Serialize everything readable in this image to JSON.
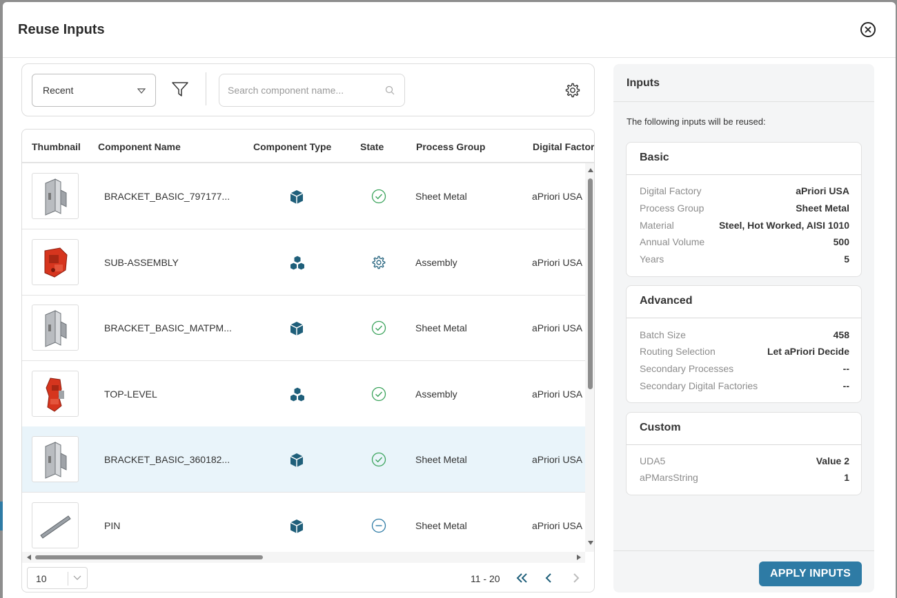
{
  "modal": {
    "title": "Reuse Inputs"
  },
  "toolbar": {
    "view_select": "Recent",
    "search_placeholder": "Search component name..."
  },
  "table": {
    "columns": [
      "Thumbnail",
      "Component Name",
      "Component Type",
      "State",
      "Process Group",
      "Digital Factory"
    ],
    "rows": [
      {
        "name": "BRACKET_BASIC_797177...",
        "type_icon": "part-cube-icon",
        "state_icon": "complete-check-icon",
        "process_group": "Sheet Metal",
        "digital_factory": "aPriori USA",
        "thumbnail": "bracket"
      },
      {
        "name": "SUB-ASSEMBLY",
        "type_icon": "assembly-cubes-icon",
        "state_icon": "processing-gear-icon",
        "process_group": "Assembly",
        "digital_factory": "aPriori USA",
        "thumbnail": "red-assembly"
      },
      {
        "name": "BRACKET_BASIC_MATPM...",
        "type_icon": "part-cube-icon",
        "state_icon": "complete-check-icon",
        "process_group": "Sheet Metal",
        "digital_factory": "aPriori USA",
        "thumbnail": "bracket"
      },
      {
        "name": "TOP-LEVEL",
        "type_icon": "assembly-cubes-icon",
        "state_icon": "complete-check-icon",
        "process_group": "Assembly",
        "digital_factory": "aPriori USA",
        "thumbnail": "red-assembly-tall"
      },
      {
        "name": "BRACKET_BASIC_360182...",
        "type_icon": "part-cube-icon",
        "state_icon": "complete-check-icon",
        "process_group": "Sheet Metal",
        "digital_factory": "aPriori USA",
        "thumbnail": "bracket",
        "selected": true
      },
      {
        "name": "PIN",
        "type_icon": "part-cube-icon",
        "state_icon": "not-costed-minus-icon",
        "process_group": "Sheet Metal",
        "digital_factory": "aPriori USA",
        "thumbnail": "pin"
      }
    ]
  },
  "pagination": {
    "page_size": "10",
    "range": "11 - 20"
  },
  "inputs": {
    "title": "Inputs",
    "description": "The following inputs will be reused:",
    "basic": {
      "title": "Basic",
      "items": [
        {
          "label": "Digital Factory",
          "value": "aPriori USA"
        },
        {
          "label": "Process Group",
          "value": "Sheet Metal"
        },
        {
          "label": "Material",
          "value": "Steel, Hot Worked, AISI 1010"
        },
        {
          "label": "Annual Volume",
          "value": "500"
        },
        {
          "label": "Years",
          "value": "5"
        }
      ]
    },
    "advanced": {
      "title": "Advanced",
      "items": [
        {
          "label": "Batch Size",
          "value": "458"
        },
        {
          "label": "Routing Selection",
          "value": "Let aPriori Decide"
        },
        {
          "label": "Secondary Processes",
          "value": "--"
        },
        {
          "label": "Secondary Digital Factories",
          "value": "--"
        }
      ]
    },
    "custom": {
      "title": "Custom",
      "items": [
        {
          "label": "UDA5",
          "value": "Value 2"
        },
        {
          "label": "aPMarsString",
          "value": "1"
        }
      ]
    },
    "apply_label": "APPLY INPUTS"
  },
  "colors": {
    "accent": "#2e7ba5",
    "icon_teal": "#1f5f7a",
    "state_green": "#3aa35b",
    "selected_row": "#e9f4fa"
  }
}
